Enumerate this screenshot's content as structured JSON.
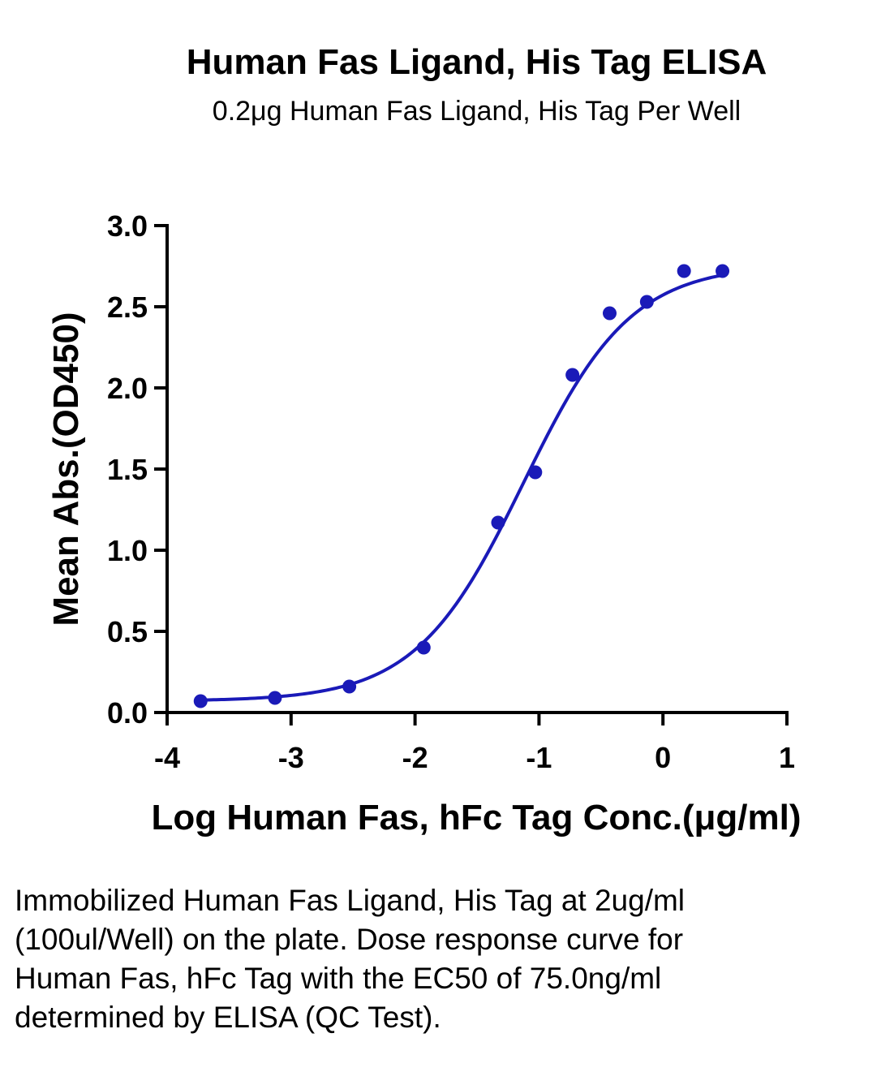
{
  "chart_data": {
    "type": "scatter",
    "title": "Human Fas Ligand, His Tag ELISA",
    "subtitle": "0.2μg Human Fas Ligand, His Tag Per Well",
    "xlabel": "Log Human Fas, hFc Tag Conc.(μg/ml)",
    "ylabel": "Mean Abs.(OD450)",
    "xlim": [
      -4,
      1
    ],
    "ylim": [
      0,
      3.0
    ],
    "xticks": [
      -4,
      -3,
      -2,
      -1,
      0,
      1
    ],
    "xtick_labels": [
      "-4",
      "-3",
      "-2",
      "-1",
      "0",
      "1"
    ],
    "yticks": [
      0,
      0.5,
      1.0,
      1.5,
      2.0,
      2.5,
      3.0
    ],
    "ytick_labels": [
      "0.0",
      "0.5",
      "1.0",
      "1.5",
      "2.0",
      "2.5",
      "3.0"
    ],
    "grid": false,
    "color": "#1a1ab8",
    "series": [
      {
        "x": [
          -3.73,
          -3.13,
          -2.53,
          -1.93,
          -1.33,
          -1.03,
          -0.73,
          -0.43,
          -0.13,
          0.17,
          0.48
        ],
        "y": [
          0.07,
          0.09,
          0.16,
          0.4,
          1.17,
          1.48,
          2.08,
          2.46,
          2.53,
          2.72,
          2.72
        ]
      }
    ],
    "fit_curve": {
      "model": "4PL",
      "bottom": 0.07,
      "top": 2.76,
      "log_ec50": -1.125,
      "hill_slope": 1.0
    }
  },
  "caption": "Immobilized Human Fas Ligand, His Tag at 2ug/ml (100ul/Well) on the plate. Dose response curve for Human Fas, hFc Tag with the EC50 of 75.0ng/ml determined by ELISA (QC Test)."
}
